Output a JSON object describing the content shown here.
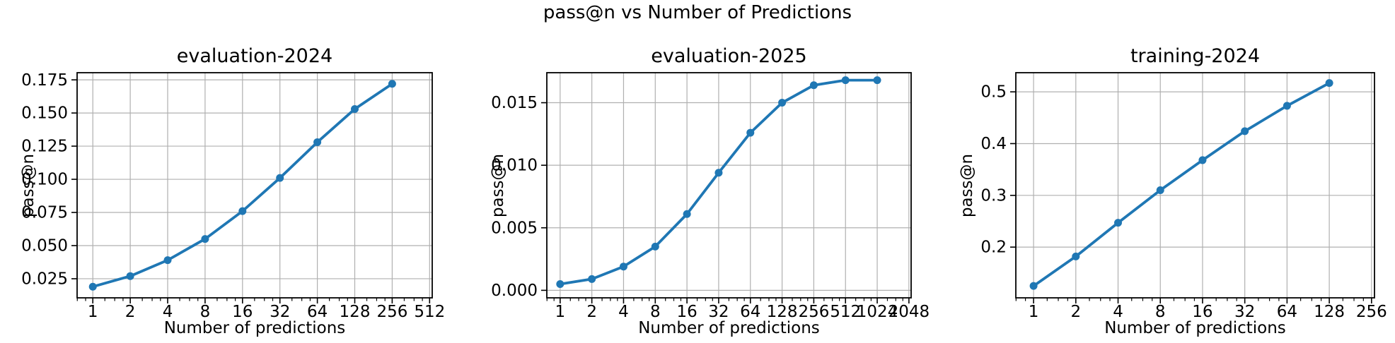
{
  "figure": {
    "suptitle": "pass@n vs Number of Predictions",
    "background": "#ffffff",
    "line_color": "#1f77b4",
    "grid_color": "#b0b0b0",
    "spine_color": "#000000",
    "text_color": "#000000"
  },
  "chart_data": [
    {
      "type": "line",
      "title": "evaluation-2024",
      "xlabel": "Number of predictions",
      "ylabel": "pass@n",
      "xscale": "log2",
      "grid": true,
      "x": [
        1,
        2,
        4,
        8,
        16,
        32,
        64,
        128,
        256
      ],
      "y": [
        0.019,
        0.027,
        0.039,
        0.055,
        0.076,
        0.101,
        0.128,
        0.153,
        0.172
      ],
      "xticks": [
        1,
        2,
        4,
        8,
        16,
        32,
        64,
        128,
        256,
        512
      ],
      "xtick_labels": [
        "1",
        "2",
        "4",
        "8",
        "16",
        "32",
        "64",
        "128",
        "256",
        "512"
      ],
      "yticks": [
        0.025,
        0.05,
        0.075,
        0.1,
        0.125,
        0.15,
        0.175
      ],
      "ytick_labels": [
        "0.025",
        "0.050",
        "0.075",
        "0.100",
        "0.125",
        "0.150",
        "0.175"
      ],
      "ylim": [
        0.0106,
        0.1804
      ]
    },
    {
      "type": "line",
      "title": "evaluation-2025",
      "xlabel": "Number of predictions",
      "ylabel": "pass@n",
      "xscale": "log2",
      "grid": true,
      "x": [
        1,
        2,
        4,
        8,
        16,
        32,
        64,
        128,
        256,
        512,
        1024
      ],
      "y": [
        0.0005,
        0.0009,
        0.0019,
        0.0035,
        0.0061,
        0.0094,
        0.0126,
        0.015,
        0.0164,
        0.0168,
        0.0168
      ],
      "xticks": [
        1,
        2,
        4,
        8,
        16,
        32,
        64,
        128,
        256,
        512,
        1024,
        2048
      ],
      "xtick_labels": [
        "1",
        "2",
        "4",
        "8",
        "16",
        "32",
        "64",
        "128",
        "256",
        "512",
        "1024",
        "2048"
      ],
      "yticks": [
        0.0,
        0.005,
        0.01,
        0.015
      ],
      "ytick_labels": [
        "0.000",
        "0.005",
        "0.010",
        "0.015"
      ],
      "ylim": [
        -0.0006,
        0.0174
      ]
    },
    {
      "type": "line",
      "title": "training-2024",
      "xlabel": "Number of predictions",
      "ylabel": "pass@n",
      "xscale": "log2",
      "grid": true,
      "x": [
        1,
        2,
        4,
        8,
        16,
        32,
        64,
        128
      ],
      "y": [
        0.125,
        0.182,
        0.247,
        0.31,
        0.368,
        0.424,
        0.473,
        0.517
      ],
      "xticks": [
        1,
        2,
        4,
        8,
        16,
        32,
        64,
        128,
        256
      ],
      "xtick_labels": [
        "1",
        "2",
        "4",
        "8",
        "16",
        "32",
        "64",
        "128",
        "256"
      ],
      "yticks": [
        0.2,
        0.3,
        0.4,
        0.5
      ],
      "ytick_labels": [
        "0.2",
        "0.3",
        "0.4",
        "0.5"
      ],
      "ylim": [
        0.102,
        0.537
      ]
    }
  ]
}
